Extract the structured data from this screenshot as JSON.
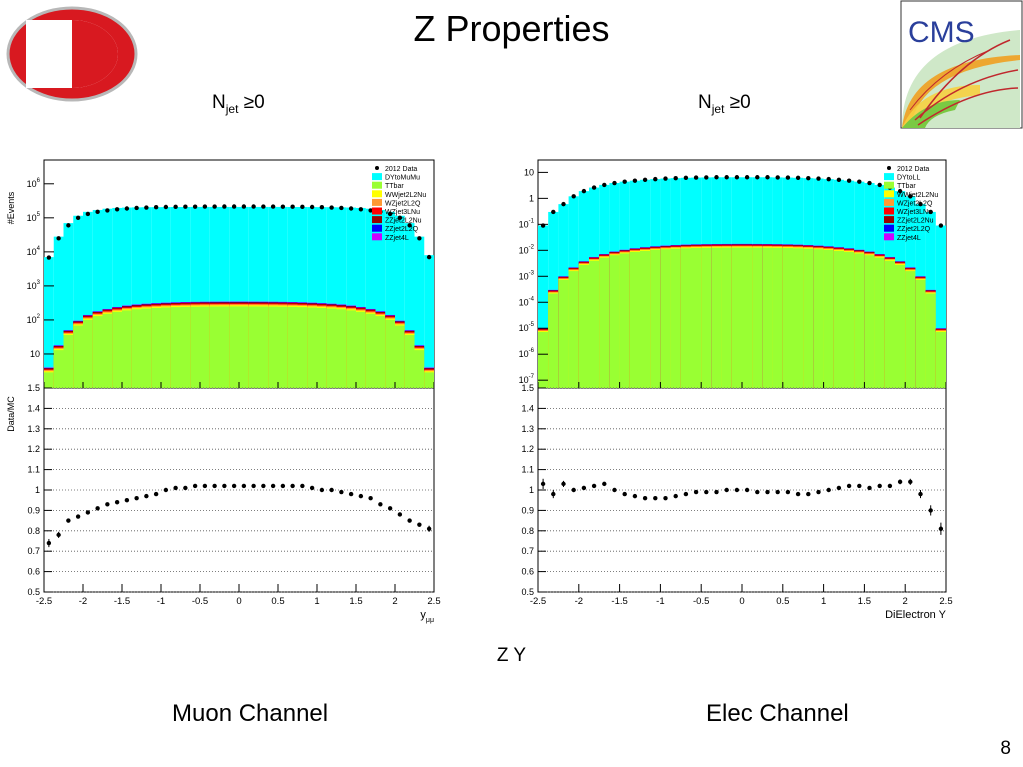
{
  "slide": {
    "title": "Z Properties",
    "njet_left": {
      "main": "N",
      "sub": "jet",
      "cond": " ≥0"
    },
    "njet_right": {
      "main": "N",
      "sub": "jet",
      "cond": " ≥0"
    },
    "bottom_label": "Z Y",
    "caption_left": "Muon Channel",
    "caption_right": "Elec Channel",
    "page_number": "8",
    "cms_logo_text": "CMS"
  },
  "chart_data": [
    {
      "type": "histogram-stack",
      "name": "muon",
      "ylabel_top": "#Events",
      "ylabel_ratio": "Data/MC",
      "xlabel": "y",
      "xlabel_sub": "μμ",
      "yscale": "log",
      "ylim_top": [
        1,
        5000000
      ],
      "ylim_ratio": [
        0.5,
        1.5
      ],
      "xlim": [
        -2.5,
        2.5
      ],
      "x_ticks": [
        "-2.5",
        "-2",
        "-1.5",
        "-1",
        "-0.5",
        "0",
        "0.5",
        "1",
        "1.5",
        "2",
        "2.5"
      ],
      "y_ticks_top": [
        {
          "base": "10",
          "exp": "6",
          "value": 1000000
        },
        {
          "base": "10",
          "exp": "5",
          "value": 100000
        },
        {
          "base": "10",
          "exp": "4",
          "value": 10000
        },
        {
          "base": "10",
          "exp": "3",
          "value": 1000
        },
        {
          "base": "10",
          "exp": "2",
          "value": 100
        },
        {
          "base": "10",
          "exp": "",
          "value": 10
        }
      ],
      "y_ticks_ratio": [
        "1.5",
        "1.4",
        "1.3",
        "1.2",
        "1.1",
        "1",
        "0.9",
        "0.8",
        "0.7",
        "0.6",
        "0.5"
      ],
      "legend": [
        "2012 Data",
        "DYtoMuMu",
        "TTbar",
        "WWjet2L2Nu",
        "WZjet2L2Q",
        "WZjet3LNu",
        "ZZjet2L2Nu",
        "ZZjet2L2Q",
        "ZZjet4L"
      ],
      "legend_colors": [
        "#000000",
        "#00ffff",
        "#99ff33",
        "#ffff00",
        "#ff9933",
        "#ff0000",
        "#990000",
        "#0000ff",
        "#cc00ff"
      ],
      "legend_placement": "top-right",
      "data_y": [
        6800,
        25000,
        60000,
        100000,
        130000,
        150000,
        165000,
        178000,
        188000,
        195000,
        200000,
        205000,
        208000,
        210000,
        212000,
        213000,
        214000,
        214000,
        215000,
        215000,
        215000,
        215000,
        214000,
        214000,
        213000,
        212000,
        210000,
        208000,
        205000,
        200000,
        195000,
        188000,
        178000,
        165000,
        150000,
        130000,
        100000,
        60000,
        25000,
        7000
      ],
      "signal_mc": [
        7000,
        28000,
        70000,
        115000,
        150000,
        170000,
        185000,
        195000,
        200000,
        203000,
        205000,
        206000,
        207000,
        208000,
        208000,
        209000,
        209000,
        209000,
        209000,
        209000,
        209000,
        209000,
        209000,
        209000,
        209000,
        208000,
        208000,
        207000,
        206000,
        205000,
        203000,
        200000,
        195000,
        185000,
        170000,
        150000,
        115000,
        70000,
        28000,
        8000
      ],
      "ttbar": [
        4,
        18,
        50,
        95,
        140,
        180,
        210,
        240,
        265,
        285,
        300,
        312,
        322,
        330,
        336,
        340,
        343,
        345,
        346,
        347,
        347,
        346,
        345,
        343,
        340,
        336,
        330,
        322,
        312,
        300,
        285,
        265,
        240,
        210,
        180,
        140,
        95,
        50,
        18,
        4
      ],
      "ratio": [
        0.74,
        0.78,
        0.85,
        0.87,
        0.89,
        0.91,
        0.93,
        0.94,
        0.95,
        0.96,
        0.97,
        0.98,
        1.0,
        1.01,
        1.01,
        1.02,
        1.02,
        1.02,
        1.02,
        1.02,
        1.02,
        1.02,
        1.02,
        1.02,
        1.02,
        1.02,
        1.02,
        1.01,
        1.0,
        1.0,
        0.99,
        0.98,
        0.97,
        0.96,
        0.93,
        0.91,
        0.88,
        0.85,
        0.83,
        0.81
      ],
      "ratio_err": [
        0.02,
        0.015,
        0.01,
        0.01,
        0.005,
        0.005,
        0.005,
        0.005,
        0.005,
        0.005,
        0.005,
        0.005,
        0.005,
        0.005,
        0.005,
        0.005,
        0.005,
        0.005,
        0.005,
        0.005,
        0.005,
        0.005,
        0.005,
        0.005,
        0.005,
        0.005,
        0.005,
        0.005,
        0.005,
        0.005,
        0.005,
        0.005,
        0.005,
        0.005,
        0.005,
        0.005,
        0.01,
        0.01,
        0.01,
        0.015
      ],
      "grid": "ratio horizontal dotted"
    },
    {
      "type": "histogram-stack",
      "name": "electron",
      "ylabel_top": "",
      "ylabel_ratio": "",
      "xlabel": "DiElectron Y",
      "xlabel_sub": "",
      "yscale": "log",
      "ylim_top": [
        5e-08,
        30
      ],
      "ylim_ratio": [
        0.5,
        1.5
      ],
      "xlim": [
        -2.5,
        2.5
      ],
      "x_ticks": [
        "-2.5",
        "-2",
        "-1.5",
        "-1",
        "-0.5",
        "0",
        "0.5",
        "1",
        "1.5",
        "2",
        "2.5"
      ],
      "y_ticks_top": [
        {
          "base": "10",
          "exp": "",
          "value": 10
        },
        {
          "base": "1",
          "exp": "",
          "value": 1
        },
        {
          "base": "10",
          "exp": "-1",
          "value": 0.1
        },
        {
          "base": "10",
          "exp": "-2",
          "value": 0.01
        },
        {
          "base": "10",
          "exp": "-3",
          "value": 0.001
        },
        {
          "base": "10",
          "exp": "-4",
          "value": 0.0001
        },
        {
          "base": "10",
          "exp": "-5",
          "value": 1e-05
        },
        {
          "base": "10",
          "exp": "-6",
          "value": 1e-06
        },
        {
          "base": "10",
          "exp": "-7",
          "value": 1e-07
        }
      ],
      "y_ticks_ratio": [
        "1.5",
        "1.4",
        "1.3",
        "1.2",
        "1.1",
        "1",
        "0.9",
        "0.8",
        "0.7",
        "0.6",
        "0.5"
      ],
      "legend": [
        "2012 Data",
        "DYtoLL",
        "TTbar",
        "WWjet2L2Nu",
        "WZjet2L2Q",
        "WZjet3LNu",
        "ZZjet2L2Nu",
        "ZZjet2L2Q",
        "ZZjet4L"
      ],
      "legend_colors": [
        "#000000",
        "#00ffff",
        "#99ff33",
        "#ffff00",
        "#ff9933",
        "#ff0000",
        "#990000",
        "#0000ff",
        "#cc00ff"
      ],
      "legend_placement": "top-right",
      "data_y": [
        0.09,
        0.3,
        0.6,
        1.2,
        1.9,
        2.6,
        3.3,
        3.9,
        4.4,
        4.8,
        5.2,
        5.5,
        5.8,
        6.0,
        6.2,
        6.3,
        6.4,
        6.5,
        6.5,
        6.5,
        6.5,
        6.5,
        6.5,
        6.4,
        6.3,
        6.2,
        6.0,
        5.8,
        5.5,
        5.2,
        4.8,
        4.4,
        3.9,
        3.3,
        2.6,
        1.9,
        1.2,
        0.6,
        0.3,
        0.09
      ],
      "signal_mc": [
        0.09,
        0.3,
        0.6,
        1.2,
        1.9,
        2.6,
        3.3,
        3.9,
        4.4,
        4.8,
        5.2,
        5.5,
        5.8,
        6.0,
        6.2,
        6.3,
        6.4,
        6.5,
        6.5,
        6.5,
        6.5,
        6.5,
        6.5,
        6.4,
        6.3,
        6.2,
        6.0,
        5.8,
        5.5,
        5.2,
        4.8,
        4.4,
        3.9,
        3.3,
        2.6,
        1.9,
        1.2,
        0.6,
        0.3,
        0.09
      ],
      "ttbar": [
        1e-05,
        0.0003,
        0.001,
        0.0022,
        0.0038,
        0.0055,
        0.0072,
        0.009,
        0.0105,
        0.012,
        0.0132,
        0.0143,
        0.0152,
        0.016,
        0.0166,
        0.017,
        0.0173,
        0.0175,
        0.0176,
        0.0177,
        0.0177,
        0.0176,
        0.0175,
        0.0173,
        0.017,
        0.0166,
        0.016,
        0.0152,
        0.0143,
        0.0132,
        0.012,
        0.0105,
        0.009,
        0.0072,
        0.0055,
        0.0038,
        0.0022,
        0.001,
        0.0003,
        1e-05
      ],
      "ratio": [
        1.03,
        0.98,
        1.03,
        1.0,
        1.01,
        1.02,
        1.03,
        1.0,
        0.98,
        0.97,
        0.96,
        0.96,
        0.96,
        0.97,
        0.98,
        0.99,
        0.99,
        0.99,
        1.0,
        1.0,
        1.0,
        0.99,
        0.99,
        0.99,
        0.99,
        0.98,
        0.98,
        0.99,
        1.0,
        1.01,
        1.02,
        1.02,
        1.01,
        1.02,
        1.02,
        1.04,
        1.04,
        0.98,
        0.9,
        0.81
      ],
      "ratio_err": [
        0.025,
        0.02,
        0.015,
        0.01,
        0.01,
        0.008,
        0.006,
        0.005,
        0.005,
        0.005,
        0.005,
        0.005,
        0.005,
        0.005,
        0.005,
        0.005,
        0.005,
        0.005,
        0.005,
        0.005,
        0.005,
        0.005,
        0.005,
        0.005,
        0.005,
        0.005,
        0.005,
        0.005,
        0.005,
        0.005,
        0.005,
        0.006,
        0.008,
        0.01,
        0.01,
        0.012,
        0.015,
        0.02,
        0.025,
        0.03
      ],
      "grid": "ratio horizontal dotted"
    }
  ]
}
